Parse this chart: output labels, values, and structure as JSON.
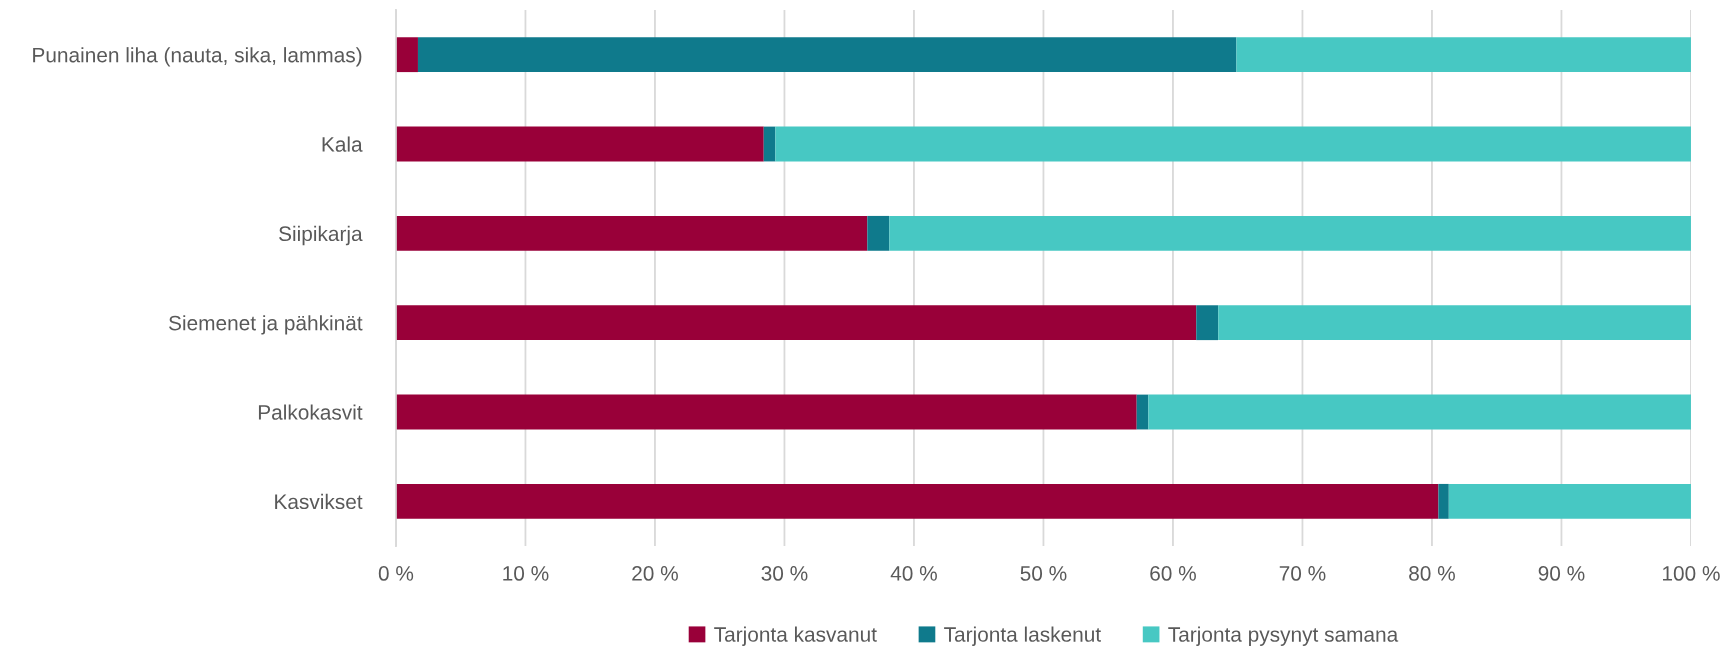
{
  "chart_data": {
    "type": "bar",
    "orientation": "horizontal",
    "stacked": true,
    "categories": [
      "Punainen liha (nauta, sika, lammas)",
      "Kala",
      "Siipikarja",
      "Siemenet ja pähkinät",
      "Palkokasvit",
      "Kasvikset"
    ],
    "series": [
      {
        "name": "Tarjonta kasvanut",
        "color": "#990039",
        "values": [
          1.7,
          28.4,
          36.4,
          61.8,
          57.2,
          80.5
        ]
      },
      {
        "name": "Tarjonta laskenut",
        "color": "#0f7a8c",
        "values": [
          63.2,
          0.9,
          1.7,
          1.7,
          0.9,
          0.8
        ]
      },
      {
        "name": "Tarjonta pysynyt samana",
        "color": "#47c8c3",
        "values": [
          35.1,
          70.7,
          61.9,
          36.5,
          41.9,
          18.7
        ]
      }
    ],
    "xlim": [
      0,
      100
    ],
    "xticks": [
      {
        "value": 0,
        "label": "0 %"
      },
      {
        "value": 10,
        "label": "10 %"
      },
      {
        "value": 20,
        "label": "20 %"
      },
      {
        "value": 30,
        "label": "30 %"
      },
      {
        "value": 40,
        "label": "40 %"
      },
      {
        "value": 50,
        "label": "50 %"
      },
      {
        "value": 60,
        "label": "60 %"
      },
      {
        "value": 70,
        "label": "70 %"
      },
      {
        "value": 80,
        "label": "80 %"
      },
      {
        "value": 90,
        "label": "90 %"
      },
      {
        "value": 100,
        "label": "100 %"
      }
    ],
    "grid": "x",
    "legend": "bottom"
  }
}
